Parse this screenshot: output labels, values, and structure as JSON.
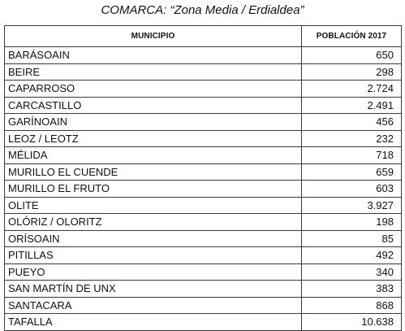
{
  "title": "COMARCA: “Zona Media / Erdialdea”",
  "headers": {
    "municipio": "MUNICIPIO",
    "poblacion": "POBLACIÓN 2017"
  },
  "rows": [
    {
      "municipio": "BARÁSOAIN",
      "poblacion": "650"
    },
    {
      "municipio": "BEIRE",
      "poblacion": "298"
    },
    {
      "municipio": "CAPARROSO",
      "poblacion": "2.724"
    },
    {
      "municipio": "CARCASTILLO",
      "poblacion": "2.491"
    },
    {
      "municipio": "GARÍNOAIN",
      "poblacion": "456"
    },
    {
      "municipio": "LEOZ / LEOTZ",
      "poblacion": "232"
    },
    {
      "municipio": "MÉLIDA",
      "poblacion": "718"
    },
    {
      "municipio": "MURILLO EL CUENDE",
      "poblacion": "659"
    },
    {
      "municipio": "MURILLO EL FRUTO",
      "poblacion": "603"
    },
    {
      "municipio": "OLITE",
      "poblacion": "3.927"
    },
    {
      "municipio": "OLÓRIZ / OLORITZ",
      "poblacion": "198"
    },
    {
      "municipio": "ORÍSOAIN",
      "poblacion": "85"
    },
    {
      "municipio": "PITILLAS",
      "poblacion": "492"
    },
    {
      "municipio": "PUEYO",
      "poblacion": "340"
    },
    {
      "municipio": "SAN MARTÍN DE UNX",
      "poblacion": "383"
    },
    {
      "municipio": "SANTACARA",
      "poblacion": "868"
    },
    {
      "municipio": "TAFALLA",
      "poblacion": "10.638"
    }
  ]
}
